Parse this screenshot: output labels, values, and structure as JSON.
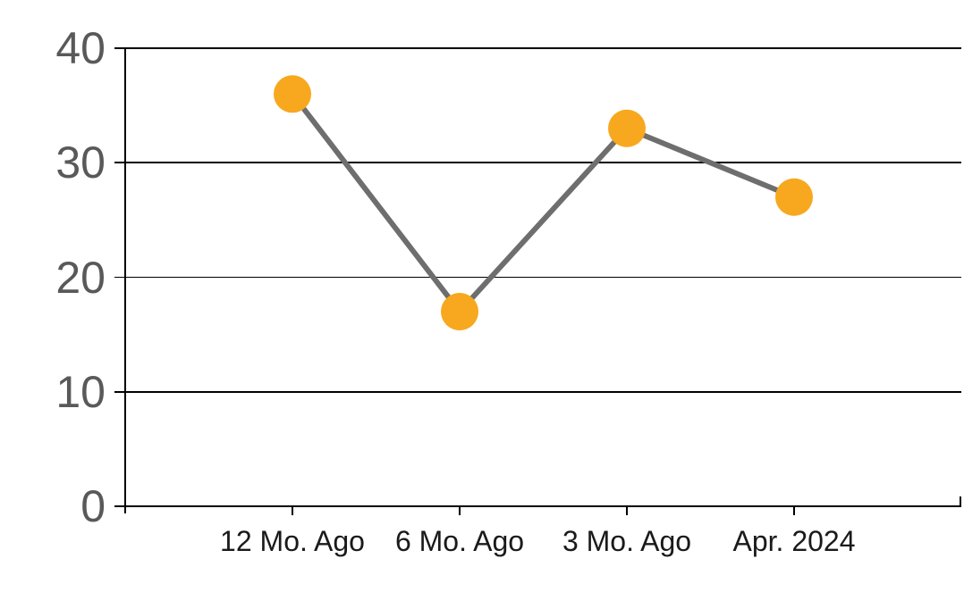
{
  "chart_data": {
    "type": "line",
    "title": "",
    "xlabel": "",
    "ylabel": "",
    "categories": [
      "12 Mo. Ago",
      "6 Mo. Ago",
      "3 Mo. Ago",
      "Apr. 2024"
    ],
    "series": [
      {
        "name": "series-1",
        "values": [
          36,
          17,
          33,
          27
        ]
      }
    ],
    "ylim": [
      0,
      40
    ],
    "yticks": [
      0,
      10,
      20,
      30,
      40
    ],
    "grid": true,
    "legend": false,
    "colors": {
      "marker": "#F7A81E",
      "line": "#6E6E6E",
      "axis": "#000000",
      "gridline": "#000000",
      "y_tick_label": "#595959",
      "x_tick_label": "#1a1a1a"
    }
  }
}
